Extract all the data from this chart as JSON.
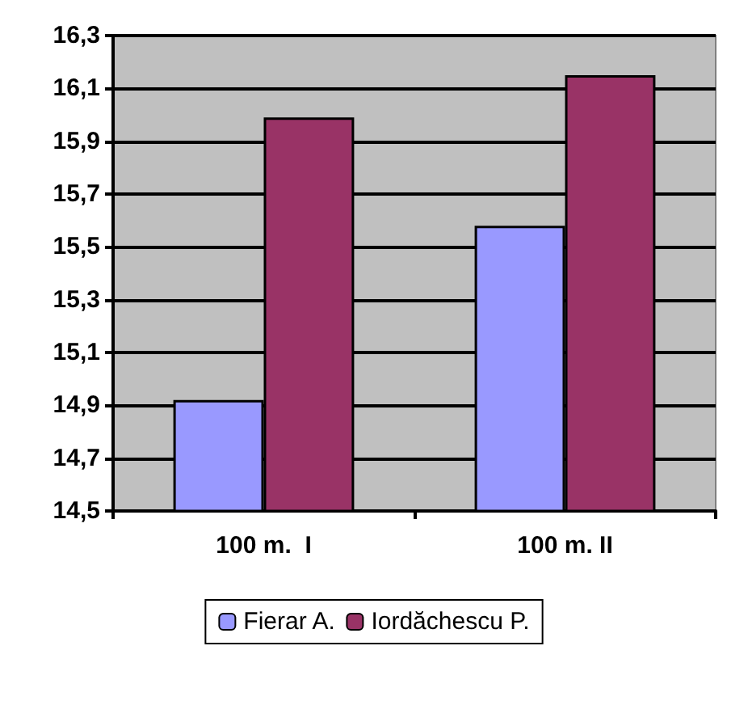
{
  "chart_data": {
    "type": "bar",
    "categories": [
      "100 m.  I",
      "100 m. II"
    ],
    "series": [
      {
        "name": "Fierar A.",
        "color": "#9999ff",
        "values": [
          14.92,
          15.58
        ]
      },
      {
        "name": "Iordăchescu P.",
        "color": "#993366",
        "values": [
          15.99,
          16.15
        ]
      }
    ],
    "ylim": [
      14.5,
      16.3
    ],
    "yticks": [
      {
        "value": 14.5,
        "label": "14,5"
      },
      {
        "value": 14.7,
        "label": "14,7"
      },
      {
        "value": 14.9,
        "label": "14,9"
      },
      {
        "value": 15.1,
        "label": "15,1"
      },
      {
        "value": 15.3,
        "label": "15,3"
      },
      {
        "value": 15.5,
        "label": "15,5"
      },
      {
        "value": 15.7,
        "label": "15,7"
      },
      {
        "value": 15.9,
        "label": "15,9"
      },
      {
        "value": 16.1,
        "label": "16,1"
      },
      {
        "value": 16.3,
        "label": "16,3"
      }
    ],
    "grid": "y",
    "legend": "bottom"
  }
}
